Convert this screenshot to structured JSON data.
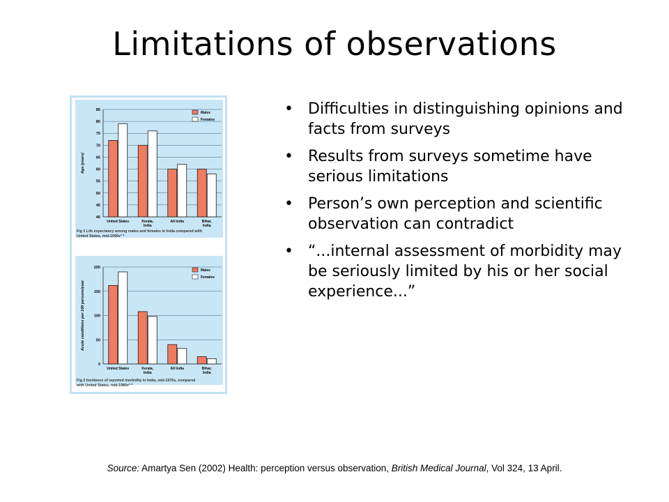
{
  "slide": {
    "title": "Limitations of observations",
    "bullets": [
      "Difficulties in distinguishing opinions and facts from surveys",
      "Results from surveys sometime have serious limitations",
      "Person’s own perception and scientific observation can contradict",
      "“...internal assessment of morbidity may be seriously limited by his or her social experience...”"
    ],
    "source": {
      "label": "Source:",
      "authors": " Amartya Sen (2002) Health: perception versus observation, ",
      "journal": "British Medical Journal",
      "details": ", Vol 324, 13 April."
    }
  },
  "colors": {
    "males": "#f07b5e",
    "females": "#ffffff",
    "plot_bg": "#c9e6f6",
    "frame": "#a8d2ec"
  },
  "chart_data": [
    {
      "type": "bar",
      "title": "Fig 1 Life expectancy among males and females in India compared with United States, mid-1990s* *",
      "ylabel": "Age (years)",
      "categories": [
        "United States",
        "Kerala, India",
        "All India",
        "Bihar, India"
      ],
      "series": [
        {
          "name": "Males",
          "values": [
            72,
            70,
            60,
            60
          ]
        },
        {
          "name": "Females",
          "values": [
            79,
            76,
            62,
            58
          ]
        }
      ],
      "ylim": [
        40,
        85
      ],
      "yticks": [
        40,
        45,
        50,
        55,
        60,
        65,
        70,
        75,
        80,
        85
      ],
      "legend": "top-right",
      "grid": true
    },
    {
      "type": "bar",
      "title": "Fig 2 Incidence of reported morbidity in India, mid-1970s, compared with United States, mid-1980s* *",
      "ylabel": "Acute conditions per 100 persons/year",
      "categories": [
        "United States",
        "Kerala, India",
        "All India",
        "Bihar, India"
      ],
      "series": [
        {
          "name": "Males",
          "values": [
            162,
            108,
            40,
            15
          ]
        },
        {
          "name": "Females",
          "values": [
            190,
            98,
            32,
            11
          ]
        }
      ],
      "ylim": [
        0,
        200
      ],
      "yticks": [
        0,
        50,
        100,
        150,
        200
      ],
      "legend": "top-right",
      "grid": true
    }
  ]
}
